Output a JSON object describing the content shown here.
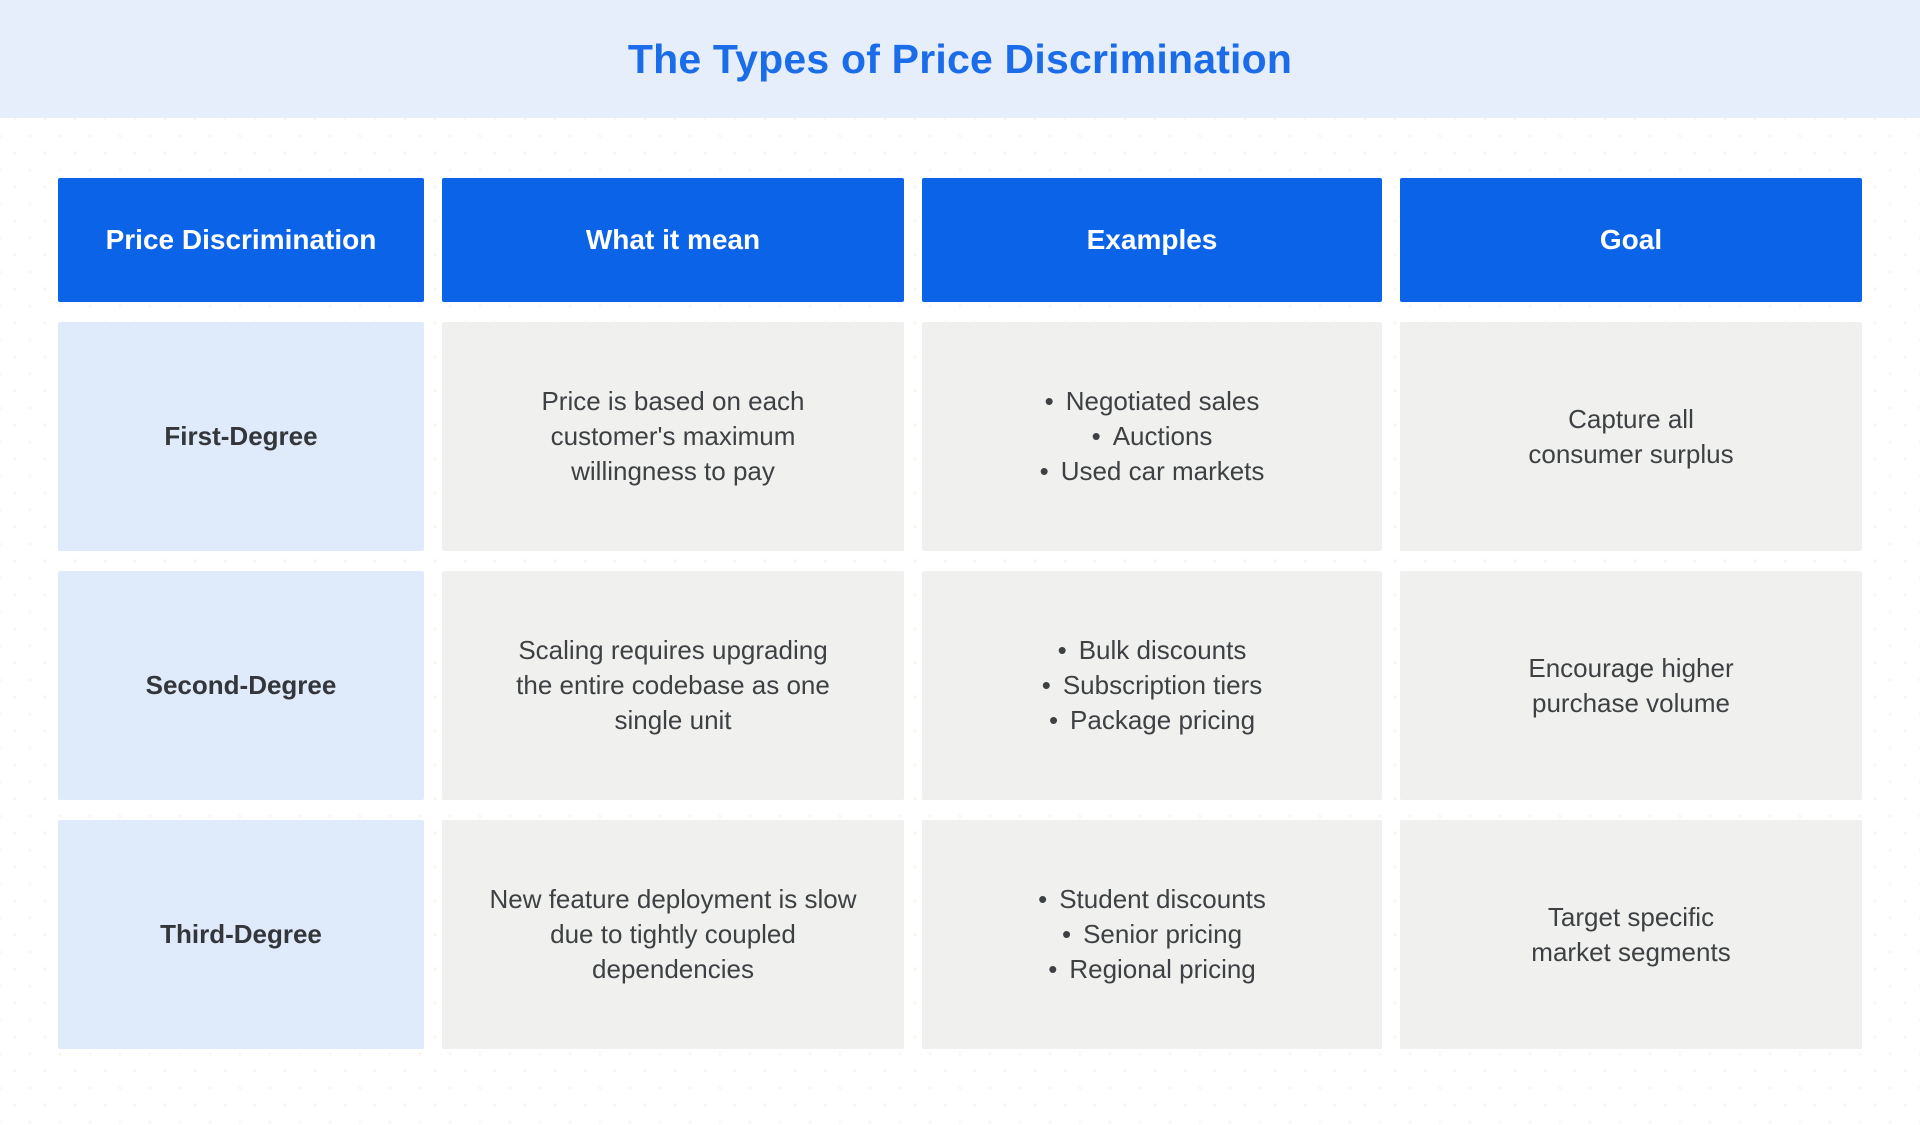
{
  "title": "The Types of Price Discrimination",
  "bullet_glyph": "•",
  "colors": {
    "title_band_bg": "#e6eefb",
    "title_text": "#1b6ce9",
    "header_bg": "#0b64e8",
    "header_text": "#ffffff",
    "label_cell_bg": "#dfeafa",
    "label_text": "#33363a",
    "body_cell_bg": "#f0f0ee",
    "body_text": "#3e4144"
  },
  "table": {
    "columns": [
      "Price Discrimination",
      "What it mean",
      "Examples",
      "Goal"
    ],
    "rows": [
      {
        "label": "First-Degree",
        "meaning_lines": [
          "Price is based on each",
          "customer's maximum",
          "willingness to pay"
        ],
        "examples": [
          "Negotiated sales",
          "Auctions",
          "Used car markets"
        ],
        "goal_lines": [
          "Capture all",
          "consumer surplus"
        ]
      },
      {
        "label": "Second-Degree",
        "meaning_lines": [
          "Scaling requires upgrading",
          "the entire codebase as one",
          "single unit"
        ],
        "examples": [
          "Bulk discounts",
          "Subscription tiers",
          "Package pricing"
        ],
        "goal_lines": [
          "Encourage higher",
          "purchase volume"
        ]
      },
      {
        "label": "Third-Degree",
        "meaning_lines": [
          "New feature deployment is slow",
          "due to tightly coupled",
          "dependencies"
        ],
        "examples": [
          "Student discounts",
          "Senior pricing",
          "Regional pricing"
        ],
        "goal_lines": [
          "Target specific",
          "market segments"
        ]
      }
    ]
  },
  "chart_data": {
    "type": "table",
    "title": "The Types of Price Discrimination",
    "columns": [
      "Price Discrimination",
      "What it mean",
      "Examples",
      "Goal"
    ],
    "rows": [
      [
        "First-Degree",
        "Price is based on each customer's maximum willingness to pay",
        "Negotiated sales; Auctions; Used car markets",
        "Capture all consumer surplus"
      ],
      [
        "Second-Degree",
        "Scaling requires upgrading the entire codebase as one single unit",
        "Bulk discounts; Subscription tiers; Package pricing",
        "Encourage higher purchase volume"
      ],
      [
        "Third-Degree",
        "New feature deployment is slow due to tightly coupled dependencies",
        "Student discounts; Senior pricing; Regional pricing",
        "Target specific market segments"
      ]
    ]
  }
}
